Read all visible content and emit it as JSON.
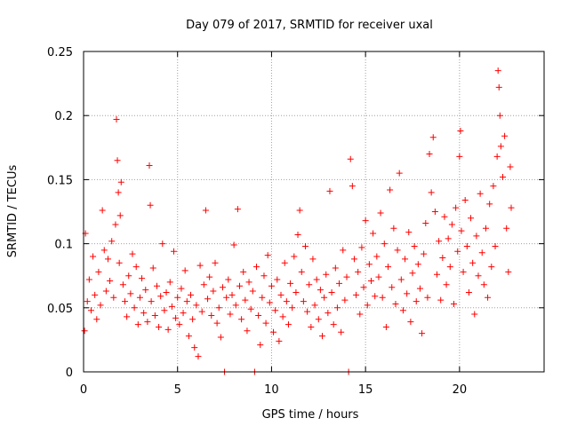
{
  "chart_data": {
    "type": "scatter",
    "title": "Day 079 of 2017, SRMTID for receiver uxal",
    "xlabel": "GPS time / hours",
    "ylabel": "SRMTID / TECUs",
    "xlim": [
      0,
      24.5
    ],
    "ylim": [
      0,
      0.25
    ],
    "x_ticks": [
      0,
      5,
      10,
      15,
      20
    ],
    "x_tick_labels": [
      "0",
      "5",
      "10",
      "15",
      "20"
    ],
    "y_ticks": [
      0,
      0.05,
      0.1,
      0.15,
      0.2,
      0.25
    ],
    "y_tick_labels": [
      "0",
      "0.05",
      "0.1",
      "0.15",
      "0.2",
      "0.25"
    ],
    "grid": true,
    "marker": "+",
    "color": "#ff0000",
    "series": [
      {
        "name": "SRMTID",
        "points": [
          [
            0.05,
            0.032
          ],
          [
            0.1,
            0.108
          ],
          [
            0.2,
            0.055
          ],
          [
            0.3,
            0.072
          ],
          [
            0.4,
            0.048
          ],
          [
            0.5,
            0.09
          ],
          [
            0.6,
            0.06
          ],
          [
            0.7,
            0.041
          ],
          [
            0.8,
            0.078
          ],
          [
            0.9,
            0.052
          ],
          [
            1.0,
            0.126
          ],
          [
            1.1,
            0.095
          ],
          [
            1.2,
            0.063
          ],
          [
            1.3,
            0.088
          ],
          [
            1.4,
            0.071
          ],
          [
            1.5,
            0.102
          ],
          [
            1.6,
            0.058
          ],
          [
            1.7,
            0.115
          ],
          [
            1.75,
            0.197
          ],
          [
            1.8,
            0.165
          ],
          [
            1.85,
            0.14
          ],
          [
            1.9,
            0.085
          ],
          [
            1.95,
            0.122
          ],
          [
            2.0,
            0.148
          ],
          [
            2.1,
            0.068
          ],
          [
            2.2,
            0.055
          ],
          [
            2.3,
            0.043
          ],
          [
            2.4,
            0.075
          ],
          [
            2.5,
            0.061
          ],
          [
            2.6,
            0.092
          ],
          [
            2.7,
            0.05
          ],
          [
            2.8,
            0.082
          ],
          [
            2.9,
            0.037
          ],
          [
            3.0,
            0.058
          ],
          [
            3.1,
            0.073
          ],
          [
            3.2,
            0.046
          ],
          [
            3.3,
            0.064
          ],
          [
            3.4,
            0.039
          ],
          [
            3.5,
            0.161
          ],
          [
            3.55,
            0.13
          ],
          [
            3.6,
            0.055
          ],
          [
            3.7,
            0.081
          ],
          [
            3.8,
            0.044
          ],
          [
            3.9,
            0.067
          ],
          [
            4.0,
            0.035
          ],
          [
            4.1,
            0.059
          ],
          [
            4.2,
            0.1
          ],
          [
            4.3,
            0.048
          ],
          [
            4.4,
            0.062
          ],
          [
            4.5,
            0.033
          ],
          [
            4.6,
            0.07
          ],
          [
            4.7,
            0.051
          ],
          [
            4.8,
            0.094
          ],
          [
            4.9,
            0.042
          ],
          [
            5.0,
            0.058
          ],
          [
            5.1,
            0.037
          ],
          [
            5.2,
            0.065
          ],
          [
            5.3,
            0.046
          ],
          [
            5.4,
            0.079
          ],
          [
            5.5,
            0.055
          ],
          [
            5.6,
            0.028
          ],
          [
            5.7,
            0.06
          ],
          [
            5.8,
            0.041
          ],
          [
            5.9,
            0.019
          ],
          [
            6.0,
            0.052
          ],
          [
            6.1,
            0.012
          ],
          [
            6.2,
            0.083
          ],
          [
            6.3,
            0.047
          ],
          [
            6.4,
            0.068
          ],
          [
            6.5,
            0.126
          ],
          [
            6.6,
            0.057
          ],
          [
            6.7,
            0.074
          ],
          [
            6.8,
            0.044
          ],
          [
            6.9,
            0.063
          ],
          [
            7.0,
            0.085
          ],
          [
            7.1,
            0.038
          ],
          [
            7.2,
            0.05
          ],
          [
            7.3,
            0.027
          ],
          [
            7.4,
            0.066
          ],
          [
            7.5,
            0.0
          ],
          [
            7.6,
            0.058
          ],
          [
            7.7,
            0.072
          ],
          [
            7.8,
            0.045
          ],
          [
            7.9,
            0.06
          ],
          [
            8.0,
            0.099
          ],
          [
            8.1,
            0.052
          ],
          [
            8.2,
            0.127
          ],
          [
            8.3,
            0.067
          ],
          [
            8.4,
            0.041
          ],
          [
            8.5,
            0.078
          ],
          [
            8.6,
            0.056
          ],
          [
            8.7,
            0.032
          ],
          [
            8.8,
            0.07
          ],
          [
            8.9,
            0.049
          ],
          [
            9.0,
            0.063
          ],
          [
            9.1,
            0.0
          ],
          [
            9.2,
            0.082
          ],
          [
            9.3,
            0.044
          ],
          [
            9.4,
            0.021
          ],
          [
            9.5,
            0.058
          ],
          [
            9.6,
            0.075
          ],
          [
            9.7,
            0.038
          ],
          [
            9.8,
            0.091
          ],
          [
            9.9,
            0.054
          ],
          [
            10.0,
            0.067
          ],
          [
            10.1,
            0.031
          ],
          [
            10.2,
            0.048
          ],
          [
            10.3,
            0.072
          ],
          [
            10.4,
            0.024
          ],
          [
            10.5,
            0.06
          ],
          [
            10.6,
            0.043
          ],
          [
            10.7,
            0.085
          ],
          [
            10.8,
            0.055
          ],
          [
            10.9,
            0.037
          ],
          [
            11.0,
            0.069
          ],
          [
            11.1,
            0.05
          ],
          [
            11.2,
            0.09
          ],
          [
            11.3,
            0.062
          ],
          [
            11.4,
            0.107
          ],
          [
            11.5,
            0.126
          ],
          [
            11.6,
            0.078
          ],
          [
            11.7,
            0.055
          ],
          [
            11.8,
            0.098
          ],
          [
            11.9,
            0.047
          ],
          [
            12.0,
            0.068
          ],
          [
            12.1,
            0.035
          ],
          [
            12.2,
            0.088
          ],
          [
            12.3,
            0.052
          ],
          [
            12.4,
            0.072
          ],
          [
            12.5,
            0.041
          ],
          [
            12.6,
            0.064
          ],
          [
            12.7,
            0.028
          ],
          [
            12.8,
            0.058
          ],
          [
            12.9,
            0.076
          ],
          [
            13.0,
            0.046
          ],
          [
            13.1,
            0.141
          ],
          [
            13.2,
            0.062
          ],
          [
            13.3,
            0.037
          ],
          [
            13.4,
            0.081
          ],
          [
            13.5,
            0.05
          ],
          [
            13.6,
            0.069
          ],
          [
            13.7,
            0.031
          ],
          [
            13.8,
            0.095
          ],
          [
            13.9,
            0.056
          ],
          [
            14.0,
            0.074
          ],
          [
            14.1,
            0.0
          ],
          [
            14.2,
            0.166
          ],
          [
            14.3,
            0.145
          ],
          [
            14.4,
            0.088
          ],
          [
            14.5,
            0.06
          ],
          [
            14.6,
            0.078
          ],
          [
            14.7,
            0.045
          ],
          [
            14.8,
            0.097
          ],
          [
            14.9,
            0.066
          ],
          [
            15.0,
            0.118
          ],
          [
            15.1,
            0.052
          ],
          [
            15.2,
            0.084
          ],
          [
            15.3,
            0.071
          ],
          [
            15.4,
            0.108
          ],
          [
            15.5,
            0.059
          ],
          [
            15.6,
            0.09
          ],
          [
            15.7,
            0.074
          ],
          [
            15.8,
            0.124
          ],
          [
            15.9,
            0.058
          ],
          [
            16.0,
            0.1
          ],
          [
            16.1,
            0.035
          ],
          [
            16.2,
            0.082
          ],
          [
            16.3,
            0.142
          ],
          [
            16.4,
            0.066
          ],
          [
            16.5,
            0.112
          ],
          [
            16.6,
            0.053
          ],
          [
            16.7,
            0.095
          ],
          [
            16.8,
            0.155
          ],
          [
            16.9,
            0.072
          ],
          [
            17.0,
            0.048
          ],
          [
            17.1,
            0.088
          ],
          [
            17.2,
            0.061
          ],
          [
            17.3,
            0.109
          ],
          [
            17.4,
            0.039
          ],
          [
            17.5,
            0.077
          ],
          [
            17.6,
            0.098
          ],
          [
            17.7,
            0.055
          ],
          [
            17.8,
            0.084
          ],
          [
            17.9,
            0.065
          ],
          [
            18.0,
            0.03
          ],
          [
            18.1,
            0.092
          ],
          [
            18.2,
            0.116
          ],
          [
            18.3,
            0.058
          ],
          [
            18.4,
            0.17
          ],
          [
            18.5,
            0.14
          ],
          [
            18.6,
            0.183
          ],
          [
            18.7,
            0.125
          ],
          [
            18.8,
            0.076
          ],
          [
            18.9,
            0.102
          ],
          [
            19.0,
            0.056
          ],
          [
            19.1,
            0.089
          ],
          [
            19.2,
            0.121
          ],
          [
            19.3,
            0.068
          ],
          [
            19.4,
            0.104
          ],
          [
            19.5,
            0.082
          ],
          [
            19.6,
            0.115
          ],
          [
            19.7,
            0.053
          ],
          [
            19.8,
            0.128
          ],
          [
            19.9,
            0.094
          ],
          [
            20.0,
            0.168
          ],
          [
            20.05,
            0.188
          ],
          [
            20.1,
            0.11
          ],
          [
            20.2,
            0.078
          ],
          [
            20.3,
            0.134
          ],
          [
            20.4,
            0.098
          ],
          [
            20.5,
            0.062
          ],
          [
            20.6,
            0.12
          ],
          [
            20.7,
            0.085
          ],
          [
            20.8,
            0.045
          ],
          [
            20.9,
            0.106
          ],
          [
            21.0,
            0.075
          ],
          [
            21.1,
            0.139
          ],
          [
            21.2,
            0.093
          ],
          [
            21.3,
            0.068
          ],
          [
            21.4,
            0.112
          ],
          [
            21.5,
            0.058
          ],
          [
            21.6,
            0.131
          ],
          [
            21.7,
            0.082
          ],
          [
            21.8,
            0.145
          ],
          [
            21.9,
            0.098
          ],
          [
            22.0,
            0.168
          ],
          [
            22.05,
            0.235
          ],
          [
            22.1,
            0.222
          ],
          [
            22.15,
            0.2
          ],
          [
            22.2,
            0.176
          ],
          [
            22.3,
            0.152
          ],
          [
            22.4,
            0.184
          ],
          [
            22.5,
            0.112
          ],
          [
            22.6,
            0.078
          ],
          [
            22.7,
            0.16
          ],
          [
            22.75,
            0.128
          ]
        ]
      }
    ]
  }
}
